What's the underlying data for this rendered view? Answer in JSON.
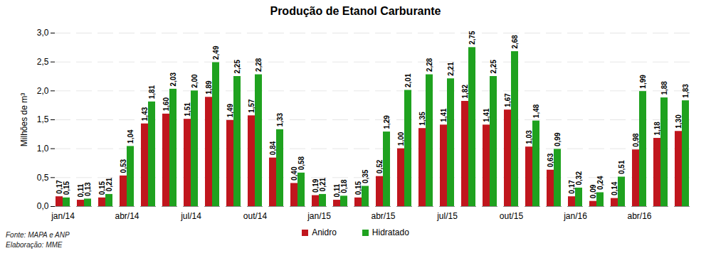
{
  "chart_data": {
    "type": "bar",
    "title": "Produção de Etanol Carburante",
    "y_label": "Milhões de m³",
    "annotations": [
      "Fonte: MAPA e ANP",
      "Elaboração: MME"
    ],
    "categories": [
      "jan/14",
      null,
      null,
      "abr/14",
      null,
      null,
      "jul/14",
      null,
      null,
      "out/14",
      null,
      null,
      "jan/15",
      null,
      null,
      "abr/15",
      null,
      null,
      "jul/15",
      null,
      null,
      "out/15",
      null,
      null,
      "jan/16",
      null,
      null,
      "abr/16",
      null,
      null
    ],
    "series": [
      {
        "name": "Anidro",
        "color": "#c0161d",
        "values": [
          0.17,
          0.11,
          0.15,
          0.53,
          1.43,
          1.6,
          1.51,
          1.89,
          1.49,
          1.57,
          0.84,
          0.4,
          0.19,
          0.11,
          0.15,
          0.52,
          1.0,
          1.35,
          1.41,
          1.82,
          1.41,
          1.67,
          1.03,
          0.63,
          0.17,
          0.09,
          0.14,
          0.98,
          1.18,
          1.3
        ],
        "value_labels": [
          "0,17",
          "0,11",
          "0,15",
          "0,53",
          "1,43",
          "1,60",
          "1,51",
          "1,89",
          "1,49",
          "1,57",
          "0,84",
          "0,40",
          "0,19",
          "0,11",
          "0,15",
          "0,52",
          "1,00",
          "1,35",
          "1,41",
          "1,82",
          "1,41",
          "1,67",
          "1,03",
          "0,63",
          "0,17",
          "0,09",
          "0,14",
          "0,98",
          "1,18",
          "1,30"
        ]
      },
      {
        "name": "Hidratado",
        "color": "#1fa21f",
        "values": [
          0.15,
          0.13,
          0.21,
          1.04,
          1.81,
          2.03,
          2.0,
          2.49,
          2.25,
          2.28,
          1.33,
          0.58,
          0.21,
          0.18,
          0.35,
          1.29,
          2.01,
          2.28,
          2.21,
          2.75,
          2.25,
          2.68,
          1.48,
          0.99,
          0.32,
          0.24,
          0.51,
          1.99,
          1.88,
          1.83
        ],
        "value_labels": [
          "0,15",
          "0,13",
          "0,21",
          "1,04",
          "1,81",
          "2,03",
          "2,00",
          "2,49",
          "2,25",
          "2,28",
          "1,33",
          "0,58",
          "0,21",
          "0,18",
          "0,35",
          "1,29",
          "2,01",
          "2,28",
          "2,21",
          "2,75",
          "2,25",
          "2,68",
          "1,48",
          "0,99",
          "0,32",
          "0,24",
          "0,51",
          "1,99",
          "1,88",
          "1,83"
        ]
      }
    ],
    "ylim": [
      0,
      3
    ],
    "yticks": [
      {
        "value": 0,
        "label": "0,0"
      },
      {
        "value": 0.5,
        "label": "0,5"
      },
      {
        "value": 1,
        "label": "1,0"
      },
      {
        "value": 1.5,
        "label": "1,5"
      },
      {
        "value": 2,
        "label": "2,0"
      },
      {
        "value": 2.5,
        "label": "2,5"
      },
      {
        "value": 3,
        "label": "3,0"
      }
    ],
    "grid": true,
    "legend": "bottom",
    "data_labels": true
  }
}
